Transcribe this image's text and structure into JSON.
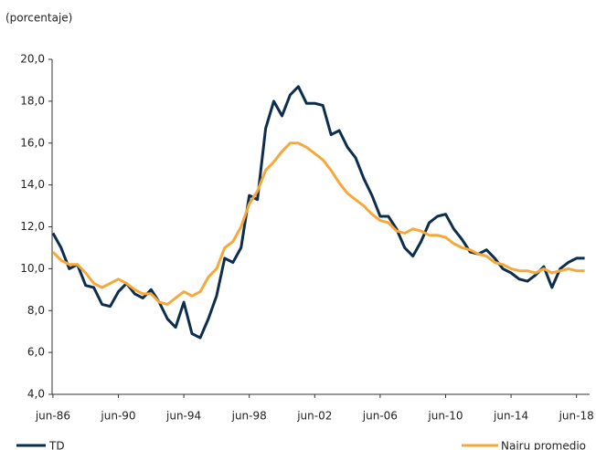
{
  "chart_data": {
    "type": "line",
    "y_label": "(porcentaje)",
    "x": [
      1986.5,
      1987.0,
      1987.5,
      1988.0,
      1988.5,
      1989.0,
      1989.5,
      1990.0,
      1990.5,
      1991.0,
      1991.5,
      1992.0,
      1992.5,
      1993.0,
      1993.5,
      1994.0,
      1994.5,
      1995.0,
      1995.5,
      1996.0,
      1996.5,
      1997.0,
      1997.5,
      1998.0,
      1998.5,
      1999.0,
      1999.5,
      2000.0,
      2000.5,
      2001.0,
      2001.5,
      2002.0,
      2002.5,
      2003.0,
      2003.5,
      2004.0,
      2004.5,
      2005.0,
      2005.5,
      2006.0,
      2006.5,
      2007.0,
      2007.5,
      2008.0,
      2008.5,
      2009.0,
      2009.5,
      2010.0,
      2010.5,
      2011.0,
      2011.5,
      2012.0,
      2012.5,
      2013.0,
      2013.5,
      2014.0,
      2014.5,
      2015.0,
      2015.5,
      2016.0,
      2016.5,
      2017.0,
      2017.5,
      2018.0,
      2018.5,
      2019.0
    ],
    "series": [
      {
        "name": "TD",
        "color": "#0d2d4f",
        "values": [
          11.7,
          11.0,
          10.0,
          10.2,
          9.2,
          9.1,
          8.3,
          8.2,
          8.9,
          9.3,
          8.8,
          8.6,
          9.0,
          8.4,
          7.6,
          7.2,
          8.4,
          6.9,
          6.7,
          7.6,
          8.7,
          10.5,
          10.3,
          11.0,
          13.5,
          13.3,
          16.7,
          18.0,
          17.3,
          18.3,
          18.7,
          17.9,
          17.9,
          17.8,
          16.4,
          16.6,
          15.8,
          15.3,
          14.3,
          13.5,
          12.5,
          12.5,
          11.9,
          11.0,
          10.6,
          11.3,
          12.2,
          12.5,
          12.6,
          11.9,
          11.4,
          10.8,
          10.7,
          10.9,
          10.5,
          10.0,
          9.8,
          9.5,
          9.4,
          9.7,
          10.1,
          9.1,
          10.0,
          10.3,
          10.5,
          10.5
        ]
      },
      {
        "name": "Nairu promedio",
        "color": "#f5a93a",
        "values": [
          10.8,
          10.4,
          10.2,
          10.2,
          9.8,
          9.3,
          9.1,
          9.3,
          9.5,
          9.3,
          9.0,
          8.8,
          8.8,
          8.4,
          8.3,
          8.6,
          8.9,
          8.7,
          8.9,
          9.6,
          10.0,
          11.0,
          11.3,
          12.0,
          13.1,
          13.7,
          14.7,
          15.1,
          15.6,
          16.0,
          16.0,
          15.8,
          15.5,
          15.2,
          14.7,
          14.1,
          13.6,
          13.3,
          13.0,
          12.6,
          12.3,
          12.2,
          11.8,
          11.7,
          11.9,
          11.8,
          11.6,
          11.6,
          11.5,
          11.2,
          11.0,
          10.9,
          10.7,
          10.6,
          10.3,
          10.2,
          10.0,
          9.9,
          9.9,
          9.8,
          10.0,
          9.8,
          9.9,
          10.0,
          9.9,
          9.9
        ]
      }
    ],
    "xlim": [
      1986.45,
      2019.3
    ],
    "xticks": [
      {
        "value": 1986.5,
        "label": "jun-86"
      },
      {
        "value": 1990.5,
        "label": "jun-90"
      },
      {
        "value": 1994.5,
        "label": "jun-94"
      },
      {
        "value": 1998.5,
        "label": "jun-98"
      },
      {
        "value": 2002.5,
        "label": "jun-02"
      },
      {
        "value": 2006.5,
        "label": "jun-06"
      },
      {
        "value": 2010.5,
        "label": "jun-10"
      },
      {
        "value": 2014.5,
        "label": "jun-14"
      },
      {
        "value": 2018.5,
        "label": "jun-18"
      }
    ],
    "ylim": [
      4,
      20
    ],
    "yticks": [
      {
        "value": 4,
        "label": "4,0"
      },
      {
        "value": 6,
        "label": "6,0"
      },
      {
        "value": 8,
        "label": "8,0"
      },
      {
        "value": 10,
        "label": "10,0"
      },
      {
        "value": 12,
        "label": "12,0"
      },
      {
        "value": 14,
        "label": "14,0"
      },
      {
        "value": 16,
        "label": "16,0"
      },
      {
        "value": 18,
        "label": "18,0"
      },
      {
        "value": 20,
        "label": "20,0"
      }
    ],
    "grid": false
  }
}
